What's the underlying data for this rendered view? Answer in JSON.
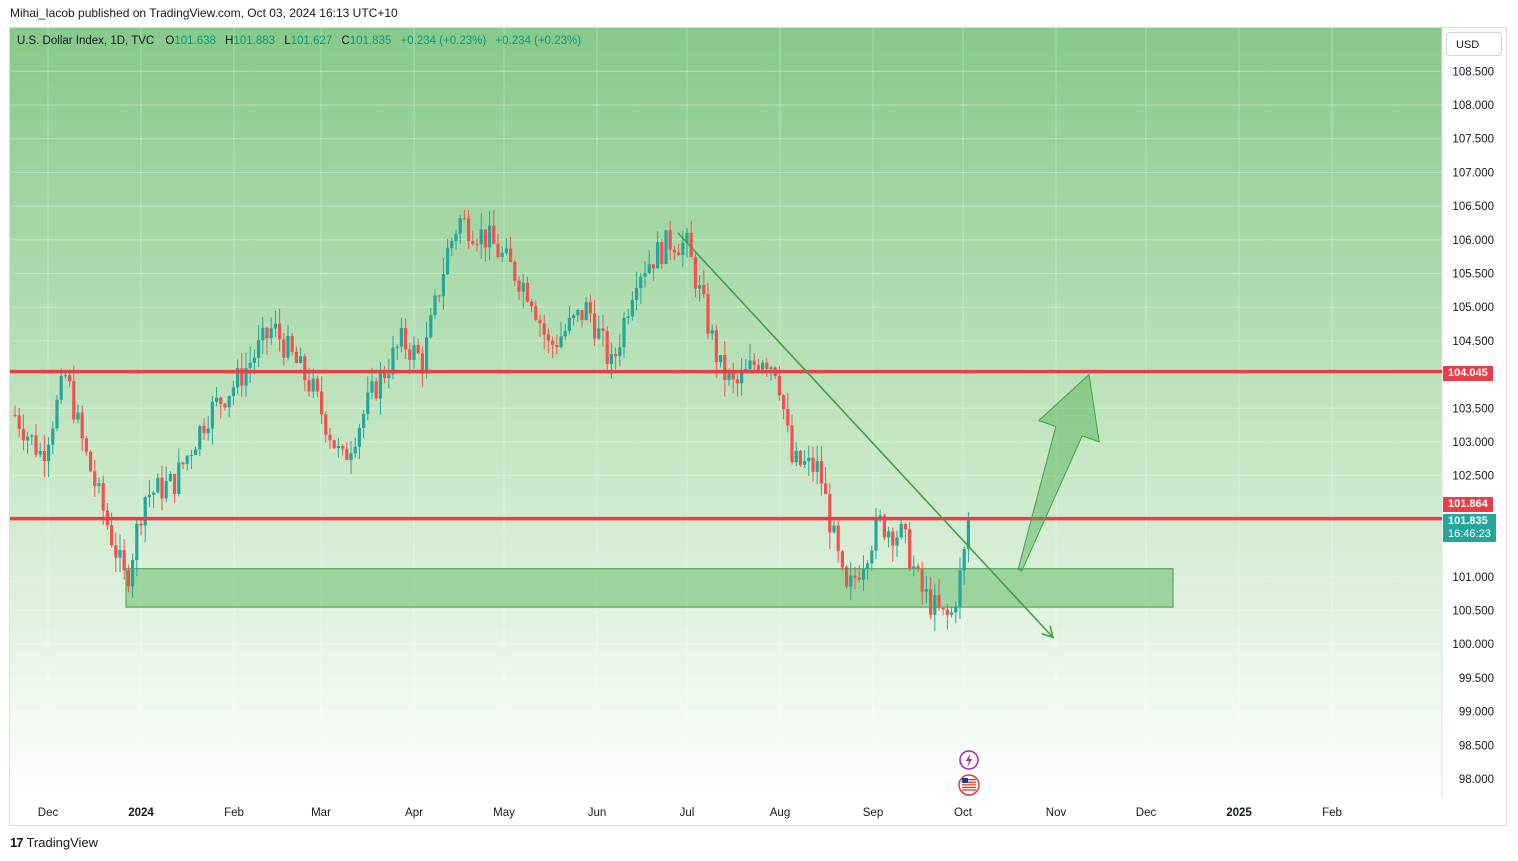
{
  "publisher_line": "Mihai_Iacob published on TradingView.com, Oct 03, 2024 16:13 UTC+10",
  "legend": {
    "symbol": "U.S. Dollar Index, 1D, TVC",
    "o_label": "O",
    "o_value": "101.638",
    "h_label": "H",
    "h_value": "101.883",
    "l_label": "L",
    "l_value": "101.627",
    "c_label": "C",
    "c_value": "101.835",
    "change": "+0.234 (+0.23%)",
    "change2": "+0.234 (+0.23%)"
  },
  "currency_button": "USD",
  "branding": {
    "logo_mark": "17",
    "name": "TradingView"
  },
  "price_tags": {
    "resistance": "104.045",
    "support": "101.864",
    "last_price": "101.835",
    "countdown": "16:46:23"
  },
  "colors": {
    "up": "#26a69a",
    "down": "#ef5350",
    "level": "#e83e48",
    "zone": "#66bb6a",
    "bg_top": "#86c98a",
    "bg_bottom": "#ffffff",
    "arrow": "#4caf50"
  },
  "event_icons": [
    "lightning-icon",
    "us-flag-icon"
  ],
  "chart_data": {
    "type": "candlestick",
    "title": "U.S. Dollar Index, 1D, TVC",
    "xlabel": "",
    "ylabel": "",
    "ylim": [
      97.8,
      108.9
    ],
    "y_ticks": [
      "108.500",
      "108.000",
      "107.500",
      "107.000",
      "106.500",
      "106.000",
      "105.500",
      "105.000",
      "104.500",
      "103.500",
      "103.000",
      "102.500",
      "101.000",
      "100.500",
      "100.000",
      "99.500",
      "99.000",
      "98.500",
      "98.000"
    ],
    "x_ticks": [
      "Dec",
      "2024",
      "Feb",
      "Mar",
      "Apr",
      "May",
      "Jun",
      "Jul",
      "Aug",
      "Sep",
      "Oct",
      "Nov",
      "Dec",
      "2025",
      "Feb"
    ],
    "x_tick_dates": [
      "2023-12-01",
      "2024-01-01",
      "2024-02-01",
      "2024-03-01",
      "2024-04-01",
      "2024-05-01",
      "2024-06-01",
      "2024-07-01",
      "2024-08-01",
      "2024-09-01",
      "2024-10-01",
      "2024-11-01",
      "2024-12-01",
      "2025-01-01",
      "2025-02-01"
    ],
    "path_nodes": [
      {
        "date": "2023-11-20",
        "close": 103.4
      },
      {
        "date": "2023-11-29",
        "close": 102.8
      },
      {
        "date": "2023-12-07",
        "close": 104.0
      },
      {
        "date": "2023-12-13",
        "close": 102.9
      },
      {
        "date": "2023-12-27",
        "close": 100.9
      },
      {
        "date": "2024-01-02",
        "close": 102.2
      },
      {
        "date": "2024-01-12",
        "close": 102.4
      },
      {
        "date": "2024-01-23",
        "close": 103.4
      },
      {
        "date": "2024-02-02",
        "close": 103.9
      },
      {
        "date": "2024-02-14",
        "close": 104.7
      },
      {
        "date": "2024-02-27",
        "close": 103.8
      },
      {
        "date": "2024-03-08",
        "close": 102.7
      },
      {
        "date": "2024-03-19",
        "close": 103.8
      },
      {
        "date": "2024-03-28",
        "close": 104.5
      },
      {
        "date": "2024-04-04",
        "close": 104.2
      },
      {
        "date": "2024-04-12",
        "close": 105.8
      },
      {
        "date": "2024-04-16",
        "close": 106.3
      },
      {
        "date": "2024-04-26",
        "close": 106.0
      },
      {
        "date": "2024-05-10",
        "close": 105.2
      },
      {
        "date": "2024-05-16",
        "close": 104.4
      },
      {
        "date": "2024-05-29",
        "close": 105.0
      },
      {
        "date": "2024-06-06",
        "close": 104.1
      },
      {
        "date": "2024-06-14",
        "close": 105.5
      },
      {
        "date": "2024-06-26",
        "close": 106.0
      },
      {
        "date": "2024-07-01",
        "close": 105.9
      },
      {
        "date": "2024-07-12",
        "close": 104.1
      },
      {
        "date": "2024-07-17",
        "close": 103.8
      },
      {
        "date": "2024-07-26",
        "close": 104.3
      },
      {
        "date": "2024-07-31",
        "close": 104.1
      },
      {
        "date": "2024-08-05",
        "close": 102.7
      },
      {
        "date": "2024-08-14",
        "close": 102.6
      },
      {
        "date": "2024-08-23",
        "close": 100.7
      },
      {
        "date": "2024-09-03",
        "close": 101.8
      },
      {
        "date": "2024-09-11",
        "close": 101.6
      },
      {
        "date": "2024-09-17",
        "close": 100.8
      },
      {
        "date": "2024-09-24",
        "close": 100.4
      },
      {
        "date": "2024-09-27",
        "close": 100.4
      },
      {
        "date": "2024-10-01",
        "close": 101.2
      },
      {
        "date": "2024-10-03",
        "close": 101.835
      }
    ],
    "horizontal_levels": [
      104.045,
      101.864
    ],
    "zone": {
      "from_date": "2023-12-27",
      "to_date": "2024-12-10",
      "low": 100.55,
      "high": 101.12
    },
    "trend_line": {
      "from": {
        "date": "2024-06-28",
        "value": 106.1
      },
      "to": {
        "date": "2024-10-31",
        "value": 100.1
      }
    },
    "projection_arrow": {
      "from": {
        "date": "2024-10-20",
        "value": 101.1
      },
      "to": {
        "date": "2024-11-12",
        "value": 104.0
      }
    }
  }
}
